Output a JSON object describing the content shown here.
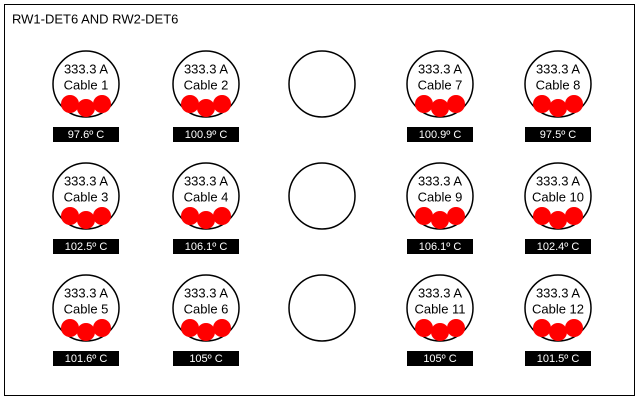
{
  "header": {
    "title": "RW1-DET6 AND RW2-DET6"
  },
  "cables": [
    {
      "current": "333.3 A",
      "name": "Cable 1",
      "temperature": "97.6º C"
    },
    {
      "current": "333.3 A",
      "name": "Cable 2",
      "temperature": "100.9º C"
    },
    {
      "current": "333.3 A",
      "name": "Cable 7",
      "temperature": "100.9º C"
    },
    {
      "current": "333.3 A",
      "name": "Cable 8",
      "temperature": "97.5º C"
    },
    {
      "current": "333.3 A",
      "name": "Cable 3",
      "temperature": "102.5º C"
    },
    {
      "current": "333.3 A",
      "name": "Cable 4",
      "temperature": "106.1º C"
    },
    {
      "current": "333.3 A",
      "name": "Cable 9",
      "temperature": "106.1º C"
    },
    {
      "current": "333.3 A",
      "name": "Cable 10",
      "temperature": "102.4º C"
    },
    {
      "current": "333.3 A",
      "name": "Cable 5",
      "temperature": "101.6º C"
    },
    {
      "current": "333.3 A",
      "name": "Cable 6",
      "temperature": "105º C"
    },
    {
      "current": "333.3 A",
      "name": "Cable 11",
      "temperature": "105º C"
    },
    {
      "current": "333.3 A",
      "name": "Cable 12",
      "temperature": "101.5º C"
    }
  ]
}
